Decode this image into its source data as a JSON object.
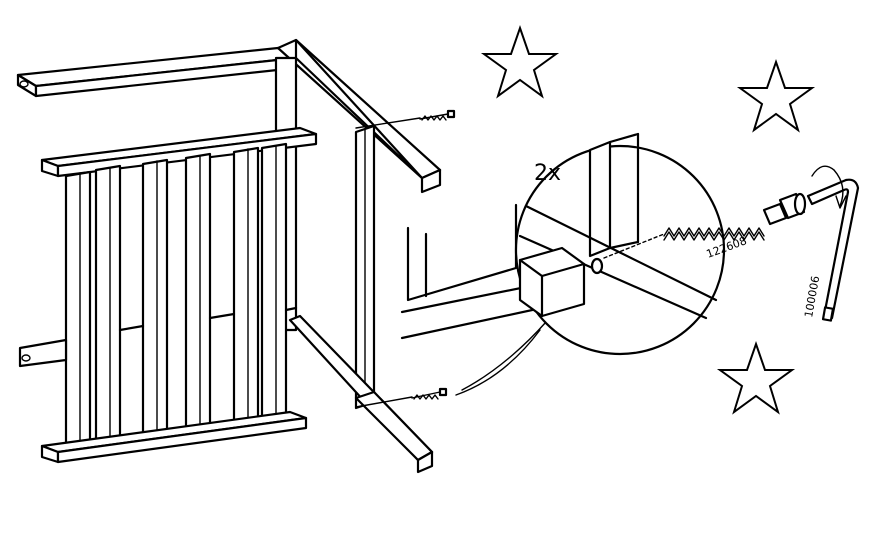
{
  "instruction": {
    "quantity": "2x",
    "screw_part_number": "122608",
    "key_part_number": "100006"
  },
  "icons": [
    "star-icon",
    "star-icon",
    "star-icon",
    "screw-icon",
    "hex-key-icon",
    "rotate-arrow-icon"
  ]
}
